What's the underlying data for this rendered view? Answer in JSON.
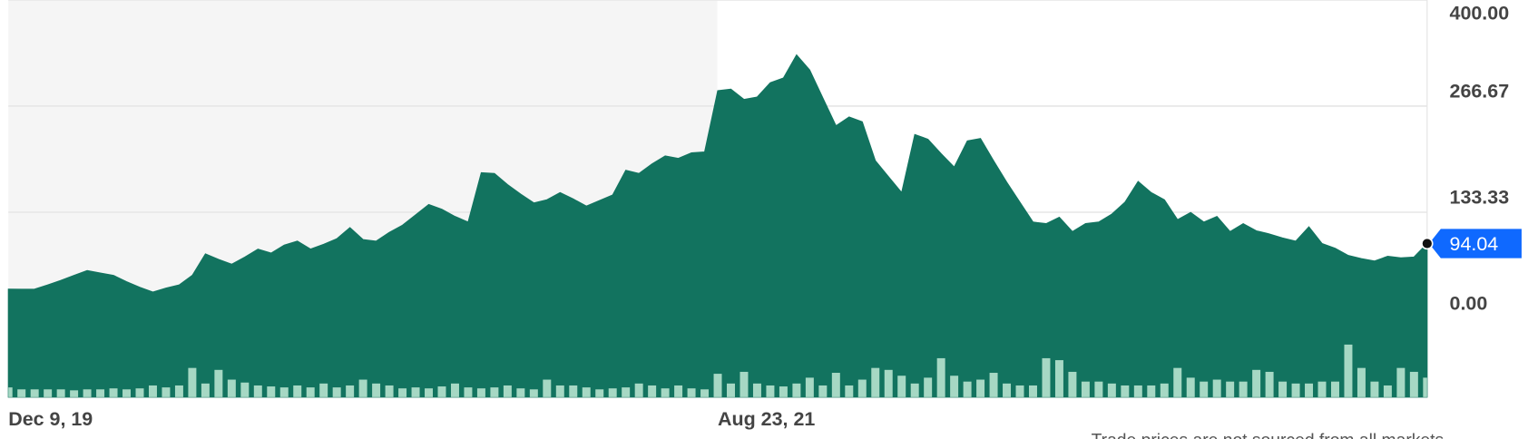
{
  "chart_data": {
    "type": "area",
    "categories": [
      "Dec 9, 19",
      null,
      null,
      null,
      null,
      null,
      null,
      null,
      null,
      null,
      null,
      null,
      null,
      null,
      null,
      null,
      null,
      null,
      null,
      null,
      null,
      null,
      null,
      null,
      null,
      null,
      null,
      null,
      null,
      null,
      null,
      null,
      null,
      null,
      null,
      null,
      null,
      null,
      null,
      null,
      null,
      null,
      null,
      null,
      null,
      null,
      null,
      null,
      null,
      null,
      null,
      null,
      null,
      null,
      "Aug 23, 21",
      null,
      null,
      null,
      null,
      null,
      null,
      null,
      null,
      null,
      null,
      null,
      null,
      null,
      null,
      null,
      null,
      null,
      null,
      null,
      null,
      null,
      null,
      null,
      null,
      null,
      null,
      null,
      null,
      null,
      null,
      null,
      null,
      null,
      null,
      null,
      null,
      null,
      null,
      null,
      null,
      null,
      null,
      null,
      null,
      null,
      null,
      null,
      null,
      null,
      null,
      null,
      null,
      null,
      null
    ],
    "values": [
      36.7,
      36.5,
      36.7,
      42,
      47.7,
      54,
      60,
      57,
      54,
      46,
      39,
      33,
      38,
      42,
      54,
      81,
      74,
      68,
      77,
      87,
      82,
      92,
      97,
      87,
      93,
      100,
      114,
      99,
      97,
      108,
      117,
      130,
      143,
      137,
      128,
      121,
      183,
      182,
      168,
      156,
      145,
      149,
      158,
      150,
      141,
      148,
      155,
      186,
      182,
      194,
      204,
      201,
      208,
      209,
      286,
      288,
      275,
      278,
      296,
      302,
      331,
      312,
      277,
      242,
      253,
      247,
      198,
      178,
      158,
      231,
      225,
      207,
      190,
      223,
      226,
      198,
      171,
      146,
      121,
      119,
      127,
      109,
      119,
      121,
      131,
      146,
      172,
      158,
      149,
      124,
      133,
      121,
      128,
      109,
      119,
      110,
      106,
      101,
      97,
      115,
      94,
      88,
      79,
      75,
      72,
      78,
      76,
      77,
      94.04
    ],
    "color": "#12735f",
    "volume": [
      10,
      8,
      8,
      8,
      8,
      7,
      8,
      8,
      9,
      8,
      9,
      12,
      10,
      12,
      30,
      14,
      28,
      18,
      15,
      12,
      11,
      10,
      12,
      10,
      14,
      10,
      12,
      18,
      14,
      12,
      9,
      10,
      9,
      11,
      14,
      10,
      9,
      10,
      12,
      9,
      8,
      18,
      12,
      12,
      10,
      8,
      9,
      10,
      14,
      12,
      9,
      12,
      9,
      8,
      24,
      14,
      26,
      14,
      12,
      11,
      14,
      20,
      12,
      25,
      12,
      18,
      30,
      28,
      22,
      14,
      20,
      40,
      22,
      16,
      18,
      25,
      14,
      12,
      12,
      40,
      38,
      26,
      16,
      16,
      14,
      12,
      12,
      12,
      14,
      30,
      20,
      16,
      18,
      16,
      16,
      28,
      26,
      16,
      14,
      14,
      16,
      16,
      54,
      30,
      16,
      12,
      30,
      26,
      20
    ],
    "volume_color": "#a6d8c4",
    "volume_lim": [
      0,
      100
    ],
    "ylim": [
      -99,
      400
    ],
    "yticks": [
      {
        "value": 0,
        "label": "0.00"
      },
      133.33,
      266.67,
      {
        "value": 400,
        "label": "400.00"
      }
    ],
    "grid": true,
    "footnote": "Trade prices are not sourced from all markets"
  }
}
